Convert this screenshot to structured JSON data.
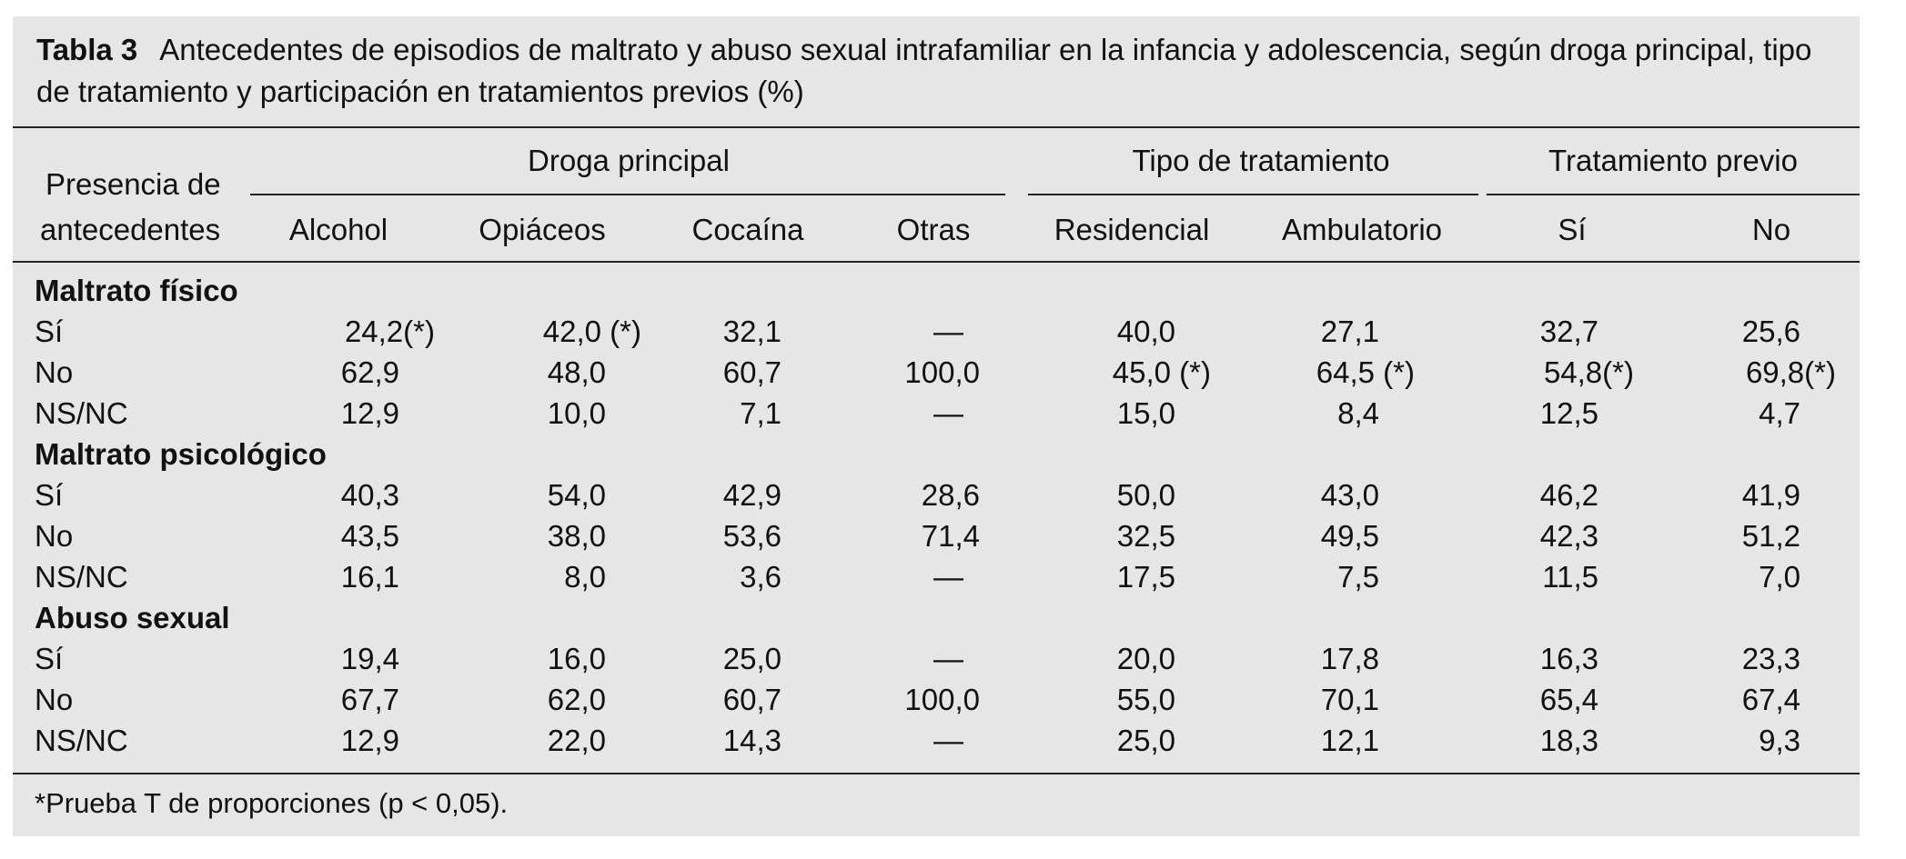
{
  "title": {
    "label": "Tabla 3",
    "text": "Antecedentes de episodios de maltrato y abuso sexual intrafamiliar en la infancia y adolescencia, según droga principal, tipo de tratamiento y participación en tratamientos previos (%)"
  },
  "header": {
    "row_header_line1": "Presencia de",
    "row_header_line2": "antecedentes",
    "groups": [
      "Droga principal",
      "Tipo de tratamiento",
      "Tratamiento previo"
    ],
    "columns": [
      "Alcohol",
      "Opiáceos",
      "Cocaína",
      "Otras",
      "Residencial",
      "Ambulatorio",
      "Sí",
      "No"
    ]
  },
  "sections": [
    {
      "name": "Maltrato físico",
      "rows": [
        {
          "label": "Sí",
          "values": [
            "24,2(*)",
            "42,0 (*)",
            "32,1",
            "—",
            "40,0",
            "27,1",
            "32,7",
            "25,6"
          ]
        },
        {
          "label": "No",
          "values": [
            "62,9",
            "48,0",
            "60,7",
            "100,0",
            "45,0 (*)",
            "64,5 (*)",
            "54,8(*)",
            "69,8(*)"
          ]
        },
        {
          "label": "NS/NC",
          "values": [
            "12,9",
            "10,0",
            "7,1",
            "—",
            "15,0",
            "8,4",
            "12,5",
            "4,7"
          ]
        }
      ]
    },
    {
      "name": "Maltrato psicológico",
      "rows": [
        {
          "label": "Sí",
          "values": [
            "40,3",
            "54,0",
            "42,9",
            "28,6",
            "50,0",
            "43,0",
            "46,2",
            "41,9"
          ]
        },
        {
          "label": "No",
          "values": [
            "43,5",
            "38,0",
            "53,6",
            "71,4",
            "32,5",
            "49,5",
            "42,3",
            "51,2"
          ]
        },
        {
          "label": "NS/NC",
          "values": [
            "16,1",
            "8,0",
            "3,6",
            "—",
            "17,5",
            "7,5",
            "11,5",
            "7,0"
          ]
        }
      ]
    },
    {
      "name": "Abuso sexual",
      "rows": [
        {
          "label": "Sí",
          "values": [
            "19,4",
            "16,0",
            "25,0",
            "—",
            "20,0",
            "17,8",
            "16,3",
            "23,3"
          ]
        },
        {
          "label": "No",
          "values": [
            "67,7",
            "62,0",
            "60,7",
            "100,0",
            "55,0",
            "70,1",
            "65,4",
            "67,4"
          ]
        },
        {
          "label": "NS/NC",
          "values": [
            "12,9",
            "22,0",
            "14,3",
            "—",
            "25,0",
            "12,1",
            "18,3",
            "9,3"
          ]
        }
      ]
    }
  ],
  "footnote": "*Prueba T de proporciones (p < 0,05)."
}
